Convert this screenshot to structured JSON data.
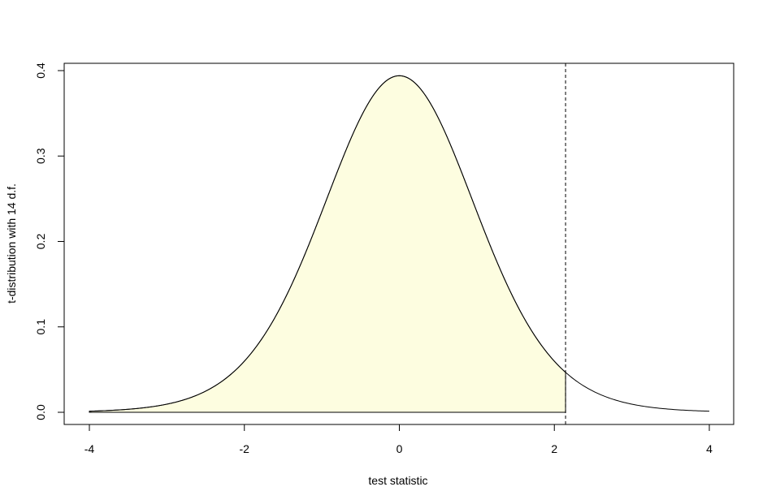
{
  "chart_data": {
    "type": "area",
    "title": "",
    "xlabel": "test statistic",
    "ylabel": "t-distribution with 14 d.f.",
    "xlim": [
      -4,
      4
    ],
    "ylim": [
      0,
      0.4
    ],
    "x_ticks": [
      "-4",
      "-2",
      "0",
      "2",
      "4"
    ],
    "y_ticks": [
      "0.0",
      "0.1",
      "0.2",
      "0.3",
      "0.4"
    ],
    "series": [
      {
        "x": [
          -4.0,
          -3.5,
          -3.0,
          -2.5,
          -2.0,
          -1.5,
          -1.0,
          -0.5,
          0.0,
          0.5,
          1.0,
          1.5,
          2.0,
          2.145,
          2.5,
          3.0,
          3.5,
          4.0
        ],
        "y": [
          0.0012,
          0.0036,
          0.0093,
          0.0233,
          0.0566,
          0.1252,
          0.2372,
          0.3477,
          0.394,
          0.3477,
          0.2372,
          0.1252,
          0.0566,
          0.0443,
          0.0233,
          0.0093,
          0.0036,
          0.0012
        ]
      }
    ],
    "shaded_region": {
      "from": -4,
      "to": 2.145,
      "fill": "#fdfde0"
    },
    "critical_value": 2.145,
    "grid": false,
    "colors": {
      "curve": "#000000",
      "fill": "#fdfde0",
      "frame": "#000000"
    }
  }
}
